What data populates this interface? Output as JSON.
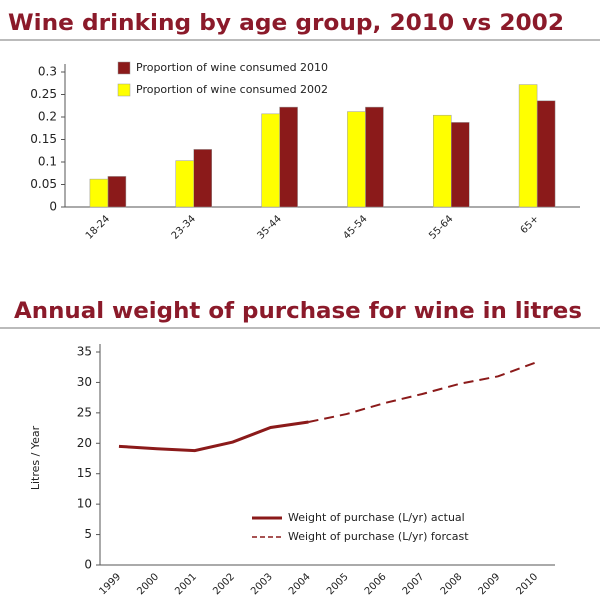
{
  "chart_data": [
    {
      "type": "bar",
      "title": "Wine drinking by age group, 2010 vs 2002",
      "categories": [
        "18-24",
        "23-34",
        "35-44",
        "45-54",
        "55-64",
        "65+"
      ],
      "series": [
        {
          "name": "Proportion of wine consumed 2010",
          "color": "#8b1a1a",
          "values": [
            0.068,
            0.128,
            0.222,
            0.222,
            0.188,
            0.236
          ]
        },
        {
          "name": "Proportion of wine consumed 2002",
          "color": "#ffff00",
          "values": [
            0.062,
            0.103,
            0.207,
            0.212,
            0.204,
            0.272
          ]
        }
      ],
      "ylim": [
        0,
        0.3
      ],
      "yticks": [
        0,
        0.05,
        0.1,
        0.15,
        0.2,
        0.25,
        0.3
      ],
      "legend": "top-left"
    },
    {
      "type": "line",
      "title": "Annual weight of purchase for wine in litres",
      "ylabel": "Litres / Year",
      "categories": [
        "1999",
        "2000",
        "2001",
        "2002",
        "2003",
        "2004",
        "2005",
        "2006",
        "2007",
        "2008",
        "2009",
        "2010"
      ],
      "series": [
        {
          "name": "Weight of purchase (L/yr) actual",
          "color": "#8b1a1a",
          "dash": false,
          "values": [
            19.5,
            19.1,
            18.8,
            20.2,
            22.6,
            23.5,
            null,
            null,
            null,
            null,
            null,
            null
          ]
        },
        {
          "name": "Weight of purchase (L/yr) forcast",
          "color": "#8b1a1a",
          "dash": true,
          "values": [
            null,
            null,
            null,
            null,
            null,
            23.5,
            24.8,
            26.6,
            28.1,
            29.8,
            31.0,
            33.3
          ]
        }
      ],
      "ylim": [
        0,
        35
      ],
      "yticks": [
        0,
        5,
        10,
        15,
        20,
        25,
        30,
        35
      ],
      "legend": "bottom-center"
    }
  ]
}
